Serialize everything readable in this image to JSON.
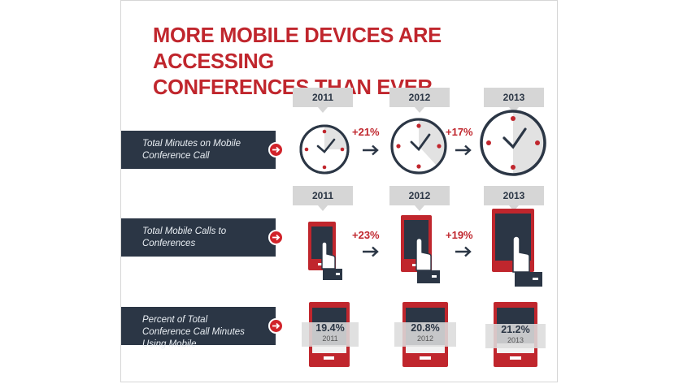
{
  "title": {
    "line1": "MORE MOBILE DEVICES ARE ACCESSING",
    "line2": "CONFERENCES THAN EVER"
  },
  "colors": {
    "red": "#c0262d",
    "navy": "#2b3645",
    "grey_tag": "#d6d6d6"
  },
  "rows": [
    {
      "label": "Total Minutes on Mobile Conference Call",
      "years": [
        "2011",
        "2012",
        "2013"
      ],
      "changes": [
        "+21%",
        "+17%"
      ],
      "icon": "clock-icon"
    },
    {
      "label": "Total Mobile Calls to Conferences",
      "years": [
        "2011",
        "2012",
        "2013"
      ],
      "changes": [
        "+23%",
        "+19%"
      ],
      "icon": "phone-tap-icon"
    },
    {
      "label": "Percent of Total Conference Call Minutes Using Mobile",
      "values": [
        {
          "value": "19.4%",
          "year": "2011"
        },
        {
          "value": "20.8%",
          "year": "2012"
        },
        {
          "value": "21.2%",
          "year": "2013"
        }
      ],
      "icon": "phone-icon"
    }
  ]
}
